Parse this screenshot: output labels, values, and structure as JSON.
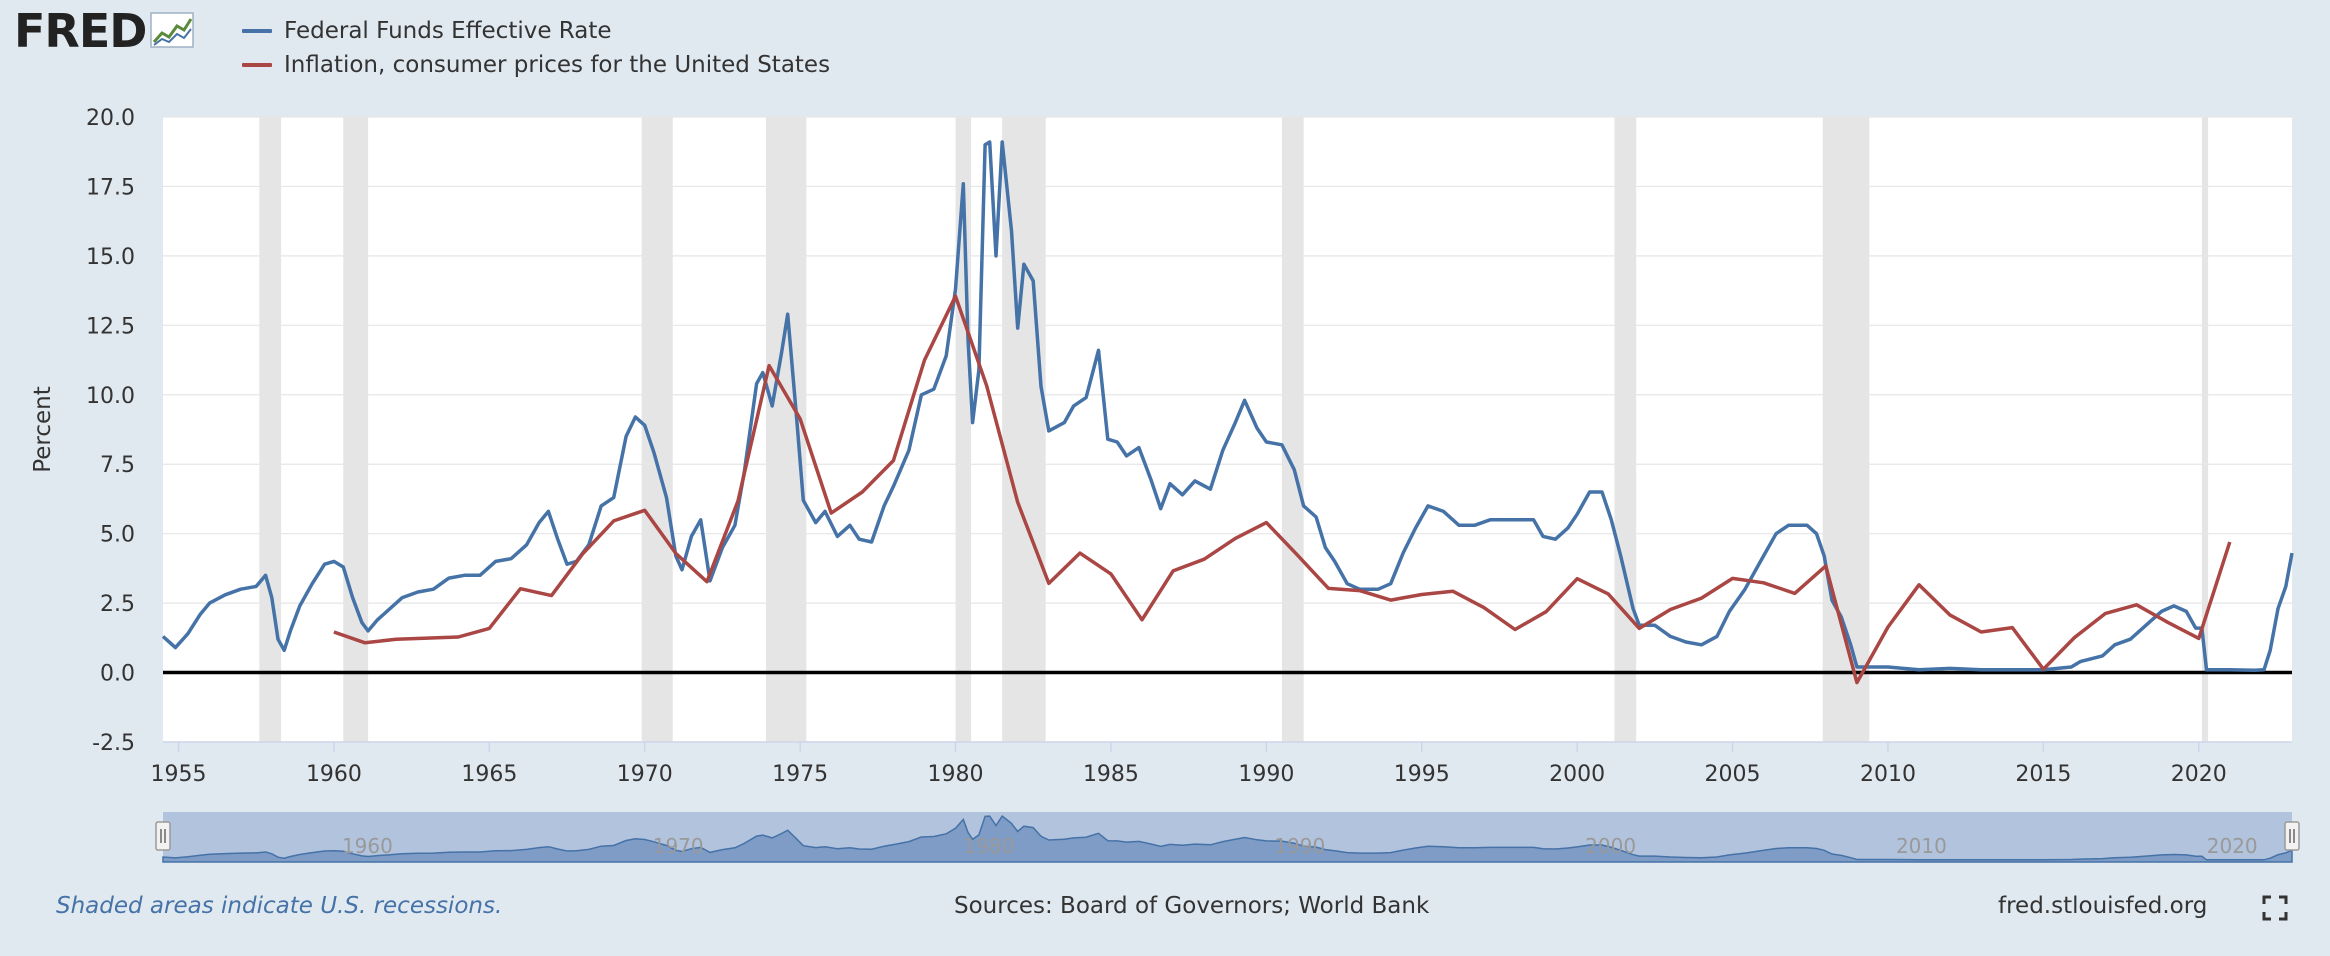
{
  "logo": {
    "text": "FRED"
  },
  "chart_data": {
    "type": "line",
    "ylabel": "Percent",
    "xlim": [
      1954.5,
      2023.0
    ],
    "ylim": [
      -2.5,
      20.0
    ],
    "yticks": [
      "20.0",
      "17.5",
      "15.0",
      "12.5",
      "10.0",
      "7.5",
      "5.0",
      "2.5",
      "0.0",
      "-2.5"
    ],
    "xticks": [
      "1955",
      "1960",
      "1965",
      "1970",
      "1975",
      "1980",
      "1985",
      "1990",
      "1995",
      "2000",
      "2005",
      "2010",
      "2015",
      "2020"
    ],
    "navigator_ticks": [
      "1960",
      "1970",
      "1980",
      "1990",
      "2000",
      "2010",
      "2020"
    ],
    "grid": true,
    "legend_position": "top-left",
    "recessions": [
      [
        1957.6,
        1958.3
      ],
      [
        1960.3,
        1961.1
      ],
      [
        1969.9,
        1970.9
      ],
      [
        1973.9,
        1975.2
      ],
      [
        1980.0,
        1980.5
      ],
      [
        1981.5,
        1982.9
      ],
      [
        1990.5,
        1991.2
      ],
      [
        2001.2,
        2001.9
      ],
      [
        2007.9,
        2009.4
      ],
      [
        2020.1,
        2020.3
      ]
    ],
    "series": [
      {
        "name": "Federal Funds Effective Rate",
        "color": "#4572a7",
        "points": [
          [
            1954.5,
            1.3
          ],
          [
            1954.9,
            0.9
          ],
          [
            1955.3,
            1.4
          ],
          [
            1955.7,
            2.1
          ],
          [
            1956.0,
            2.5
          ],
          [
            1956.5,
            2.8
          ],
          [
            1957.0,
            3.0
          ],
          [
            1957.5,
            3.1
          ],
          [
            1957.8,
            3.5
          ],
          [
            1958.0,
            2.7
          ],
          [
            1958.2,
            1.2
          ],
          [
            1958.4,
            0.8
          ],
          [
            1958.6,
            1.5
          ],
          [
            1958.9,
            2.4
          ],
          [
            1959.3,
            3.2
          ],
          [
            1959.7,
            3.9
          ],
          [
            1960.0,
            4.0
          ],
          [
            1960.3,
            3.8
          ],
          [
            1960.6,
            2.7
          ],
          [
            1960.9,
            1.8
          ],
          [
            1961.1,
            1.5
          ],
          [
            1961.4,
            1.9
          ],
          [
            1961.8,
            2.3
          ],
          [
            1962.2,
            2.7
          ],
          [
            1962.7,
            2.9
          ],
          [
            1963.2,
            3.0
          ],
          [
            1963.7,
            3.4
          ],
          [
            1964.2,
            3.5
          ],
          [
            1964.7,
            3.5
          ],
          [
            1965.2,
            4.0
          ],
          [
            1965.7,
            4.1
          ],
          [
            1966.2,
            4.6
          ],
          [
            1966.6,
            5.4
          ],
          [
            1966.9,
            5.8
          ],
          [
            1967.2,
            4.8
          ],
          [
            1967.5,
            3.9
          ],
          [
            1967.8,
            4.0
          ],
          [
            1968.2,
            4.6
          ],
          [
            1968.6,
            6.0
          ],
          [
            1969.0,
            6.3
          ],
          [
            1969.4,
            8.5
          ],
          [
            1969.7,
            9.2
          ],
          [
            1970.0,
            8.9
          ],
          [
            1970.3,
            7.9
          ],
          [
            1970.7,
            6.3
          ],
          [
            1971.0,
            4.2
          ],
          [
            1971.2,
            3.7
          ],
          [
            1971.5,
            4.9
          ],
          [
            1971.8,
            5.5
          ],
          [
            1972.1,
            3.3
          ],
          [
            1972.5,
            4.5
          ],
          [
            1972.9,
            5.3
          ],
          [
            1973.2,
            7.2
          ],
          [
            1973.6,
            10.4
          ],
          [
            1973.8,
            10.8
          ],
          [
            1974.1,
            9.6
          ],
          [
            1974.4,
            11.5
          ],
          [
            1974.6,
            12.9
          ],
          [
            1974.9,
            9.0
          ],
          [
            1975.1,
            6.2
          ],
          [
            1975.5,
            5.4
          ],
          [
            1975.8,
            5.8
          ],
          [
            1976.2,
            4.9
          ],
          [
            1976.6,
            5.3
          ],
          [
            1976.9,
            4.8
          ],
          [
            1977.3,
            4.7
          ],
          [
            1977.7,
            6.0
          ],
          [
            1978.0,
            6.7
          ],
          [
            1978.5,
            8.0
          ],
          [
            1978.9,
            10.0
          ],
          [
            1979.3,
            10.2
          ],
          [
            1979.7,
            11.4
          ],
          [
            1980.0,
            13.8
          ],
          [
            1980.25,
            17.6
          ],
          [
            1980.4,
            12.0
          ],
          [
            1980.55,
            9.0
          ],
          [
            1980.75,
            10.9
          ],
          [
            1980.95,
            19.0
          ],
          [
            1981.1,
            19.1
          ],
          [
            1981.3,
            15.0
          ],
          [
            1981.5,
            19.1
          ],
          [
            1981.8,
            15.9
          ],
          [
            1982.0,
            12.4
          ],
          [
            1982.2,
            14.7
          ],
          [
            1982.5,
            14.1
          ],
          [
            1982.75,
            10.3
          ],
          [
            1983.0,
            8.7
          ],
          [
            1983.5,
            9.0
          ],
          [
            1983.8,
            9.6
          ],
          [
            1984.2,
            9.9
          ],
          [
            1984.6,
            11.6
          ],
          [
            1984.9,
            8.4
          ],
          [
            1985.2,
            8.3
          ],
          [
            1985.5,
            7.8
          ],
          [
            1985.9,
            8.1
          ],
          [
            1986.3,
            6.9
          ],
          [
            1986.6,
            5.9
          ],
          [
            1986.9,
            6.8
          ],
          [
            1987.3,
            6.4
          ],
          [
            1987.7,
            6.9
          ],
          [
            1988.2,
            6.6
          ],
          [
            1988.6,
            8.0
          ],
          [
            1989.0,
            9.0
          ],
          [
            1989.3,
            9.8
          ],
          [
            1989.7,
            8.8
          ],
          [
            1990.0,
            8.3
          ],
          [
            1990.5,
            8.2
          ],
          [
            1990.9,
            7.3
          ],
          [
            1991.2,
            6.0
          ],
          [
            1991.6,
            5.6
          ],
          [
            1991.9,
            4.5
          ],
          [
            1992.2,
            4.0
          ],
          [
            1992.6,
            3.2
          ],
          [
            1993.0,
            3.0
          ],
          [
            1993.6,
            3.0
          ],
          [
            1994.0,
            3.2
          ],
          [
            1994.4,
            4.3
          ],
          [
            1994.8,
            5.2
          ],
          [
            1995.2,
            6.0
          ],
          [
            1995.7,
            5.8
          ],
          [
            1996.2,
            5.3
          ],
          [
            1996.7,
            5.3
          ],
          [
            1997.2,
            5.5
          ],
          [
            1997.7,
            5.5
          ],
          [
            1998.2,
            5.5
          ],
          [
            1998.6,
            5.5
          ],
          [
            1998.9,
            4.9
          ],
          [
            1999.3,
            4.8
          ],
          [
            1999.7,
            5.2
          ],
          [
            2000.0,
            5.7
          ],
          [
            2000.4,
            6.5
          ],
          [
            2000.8,
            6.5
          ],
          [
            2001.1,
            5.5
          ],
          [
            2001.4,
            4.2
          ],
          [
            2001.8,
            2.3
          ],
          [
            2002.0,
            1.7
          ],
          [
            2002.5,
            1.7
          ],
          [
            2003.0,
            1.3
          ],
          [
            2003.5,
            1.1
          ],
          [
            2004.0,
            1.0
          ],
          [
            2004.5,
            1.3
          ],
          [
            2004.9,
            2.2
          ],
          [
            2005.4,
            3.0
          ],
          [
            2005.9,
            4.0
          ],
          [
            2006.4,
            5.0
          ],
          [
            2006.8,
            5.3
          ],
          [
            2007.4,
            5.3
          ],
          [
            2007.7,
            5.0
          ],
          [
            2007.95,
            4.2
          ],
          [
            2008.2,
            2.6
          ],
          [
            2008.5,
            2.0
          ],
          [
            2008.8,
            1.0
          ],
          [
            2009.0,
            0.2
          ],
          [
            2010.0,
            0.2
          ],
          [
            2011.0,
            0.1
          ],
          [
            2012.0,
            0.15
          ],
          [
            2013.0,
            0.1
          ],
          [
            2014.0,
            0.1
          ],
          [
            2015.0,
            0.1
          ],
          [
            2015.9,
            0.2
          ],
          [
            2016.2,
            0.4
          ],
          [
            2016.9,
            0.6
          ],
          [
            2017.3,
            1.0
          ],
          [
            2017.8,
            1.2
          ],
          [
            2018.3,
            1.7
          ],
          [
            2018.8,
            2.2
          ],
          [
            2019.2,
            2.4
          ],
          [
            2019.6,
            2.2
          ],
          [
            2019.9,
            1.6
          ],
          [
            2020.1,
            1.6
          ],
          [
            2020.25,
            0.1
          ],
          [
            2021.0,
            0.1
          ],
          [
            2021.8,
            0.08
          ],
          [
            2022.1,
            0.1
          ],
          [
            2022.3,
            0.8
          ],
          [
            2022.55,
            2.3
          ],
          [
            2022.8,
            3.1
          ],
          [
            2023.0,
            4.3
          ]
        ]
      },
      {
        "name": "Inflation, consumer prices for the United States",
        "color": "#aa4643",
        "points": [
          [
            1960,
            1.46
          ],
          [
            1961,
            1.07
          ],
          [
            1962,
            1.2
          ],
          [
            1963,
            1.24
          ],
          [
            1964,
            1.28
          ],
          [
            1965,
            1.59
          ],
          [
            1966,
            3.02
          ],
          [
            1967,
            2.77
          ],
          [
            1968,
            4.27
          ],
          [
            1969,
            5.46
          ],
          [
            1970,
            5.84
          ],
          [
            1971,
            4.29
          ],
          [
            1972,
            3.27
          ],
          [
            1973,
            6.18
          ],
          [
            1974,
            11.05
          ],
          [
            1975,
            9.14
          ],
          [
            1976,
            5.74
          ],
          [
            1977,
            6.5
          ],
          [
            1978,
            7.63
          ],
          [
            1979,
            11.25
          ],
          [
            1980,
            13.55
          ],
          [
            1981,
            10.33
          ],
          [
            1982,
            6.13
          ],
          [
            1983,
            3.21
          ],
          [
            1984,
            4.3
          ],
          [
            1985,
            3.55
          ],
          [
            1986,
            1.9
          ],
          [
            1987,
            3.66
          ],
          [
            1988,
            4.08
          ],
          [
            1989,
            4.83
          ],
          [
            1990,
            5.4
          ],
          [
            1991,
            4.23
          ],
          [
            1992,
            3.03
          ],
          [
            1993,
            2.95
          ],
          [
            1994,
            2.61
          ],
          [
            1995,
            2.81
          ],
          [
            1996,
            2.93
          ],
          [
            1997,
            2.34
          ],
          [
            1998,
            1.55
          ],
          [
            1999,
            2.19
          ],
          [
            2000,
            3.38
          ],
          [
            2001,
            2.83
          ],
          [
            2002,
            1.59
          ],
          [
            2003,
            2.27
          ],
          [
            2004,
            2.68
          ],
          [
            2005,
            3.39
          ],
          [
            2006,
            3.23
          ],
          [
            2007,
            2.85
          ],
          [
            2008,
            3.84
          ],
          [
            2009,
            -0.36
          ],
          [
            2010,
            1.64
          ],
          [
            2011,
            3.16
          ],
          [
            2012,
            2.07
          ],
          [
            2013,
            1.46
          ],
          [
            2014,
            1.62
          ],
          [
            2015,
            0.12
          ],
          [
            2016,
            1.26
          ],
          [
            2017,
            2.13
          ],
          [
            2018,
            2.44
          ],
          [
            2019,
            1.81
          ],
          [
            2020,
            1.23
          ],
          [
            2021,
            4.7
          ]
        ]
      }
    ]
  },
  "footer": {
    "note": "Shaded areas indicate U.S. recessions.",
    "sources": "Sources: Board of Governors; World Bank",
    "site": "fred.stlouisfed.org"
  },
  "colors": {
    "background": "#e1e9f0",
    "plot_background": "#ffffff",
    "recession": "#e5e5e5",
    "navigator": "#b2c3dd",
    "navigator_area": "#6d8fbf"
  },
  "icons": {
    "logo": "line-chart-icon",
    "fullscreen": "fullscreen-icon"
  }
}
